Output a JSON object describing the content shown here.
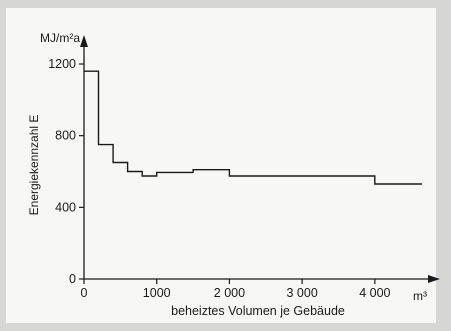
{
  "chart_data": {
    "type": "line",
    "step": true,
    "title": "",
    "y_unit": "MJ/m²a",
    "ylabel": "Energiekennzahl  E",
    "xlabel": "beheiztes Volumen je Gebäude",
    "x_unit": "m³",
    "xlim": [
      0,
      4800
    ],
    "ylim": [
      0,
      1350
    ],
    "x_ticks": [
      0,
      1000,
      2000,
      3000,
      4000
    ],
    "x_tick_labels": [
      "0",
      "1000",
      "2 000",
      "3 000",
      "4 000"
    ],
    "y_ticks": [
      0,
      400,
      800,
      1200
    ],
    "y_tick_labels": [
      "0",
      "400",
      "800",
      "1200"
    ],
    "grid": false,
    "series": [
      {
        "x": [
          0,
          200,
          200,
          400,
          400,
          600,
          600,
          800,
          800,
          1000,
          1000,
          1500,
          1500,
          2000,
          2000,
          4000,
          4000,
          4650
        ],
        "y": [
          1160,
          1160,
          750,
          750,
          650,
          650,
          600,
          600,
          575,
          575,
          595,
          595,
          610,
          610,
          575,
          575,
          530,
          530
        ]
      }
    ]
  },
  "colors": {
    "background": "#d6d6d3",
    "panel": "#f7f7f5",
    "ink": "#1a1a1a"
  }
}
